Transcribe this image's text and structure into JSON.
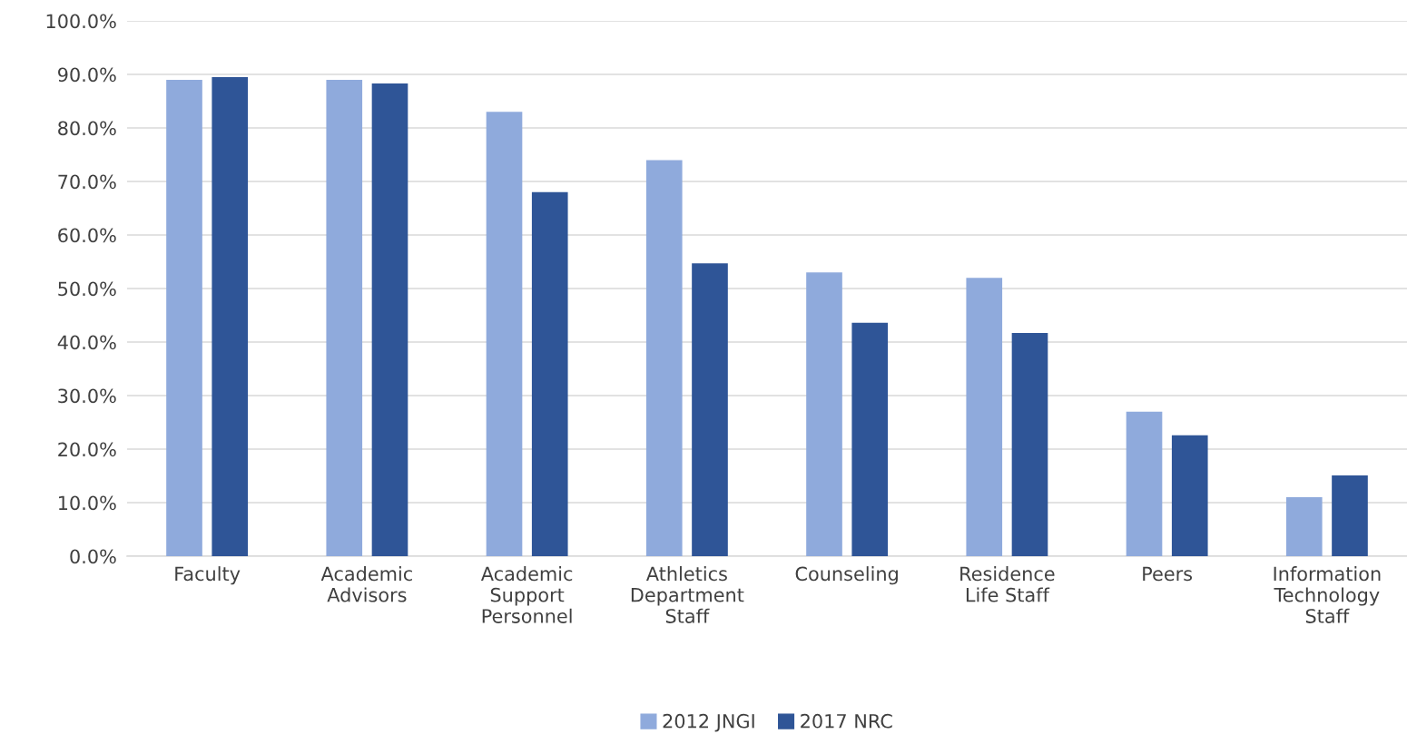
{
  "chart_data": {
    "type": "bar",
    "categories": [
      "Faculty",
      "Academic\nAdvisors",
      "Academic\nSupport\nPersonnel",
      "Athletics\nDepartment\nStaff",
      "Counseling",
      "Residence\nLife Staff",
      "Peers",
      "Information\nTechnology\nStaff"
    ],
    "series": [
      {
        "name": "2012 JNGI",
        "color": "#8faadc",
        "values": [
          89.0,
          89.0,
          83.0,
          74.0,
          53.0,
          52.0,
          27.0,
          11.0
        ]
      },
      {
        "name": "2017 NRC",
        "color": "#2f5597",
        "values": [
          89.5,
          88.3,
          68.0,
          54.7,
          43.6,
          41.7,
          22.6,
          15.1
        ]
      }
    ],
    "ylim": [
      0,
      100
    ],
    "yticks": [
      {
        "value": 0,
        "label": "0.0%"
      },
      {
        "value": 10,
        "label": "10.0%"
      },
      {
        "value": 20,
        "label": "20.0%"
      },
      {
        "value": 30,
        "label": "30.0%"
      },
      {
        "value": 40,
        "label": "40.0%"
      },
      {
        "value": 50,
        "label": "50.0%"
      },
      {
        "value": 60,
        "label": "60.0%"
      },
      {
        "value": 70,
        "label": "70.0%"
      },
      {
        "value": 80,
        "label": "80.0%"
      },
      {
        "value": 90,
        "label": "90.0%"
      },
      {
        "value": 100,
        "label": "100.0%"
      }
    ],
    "grid": "y",
    "legend": "bottom"
  }
}
